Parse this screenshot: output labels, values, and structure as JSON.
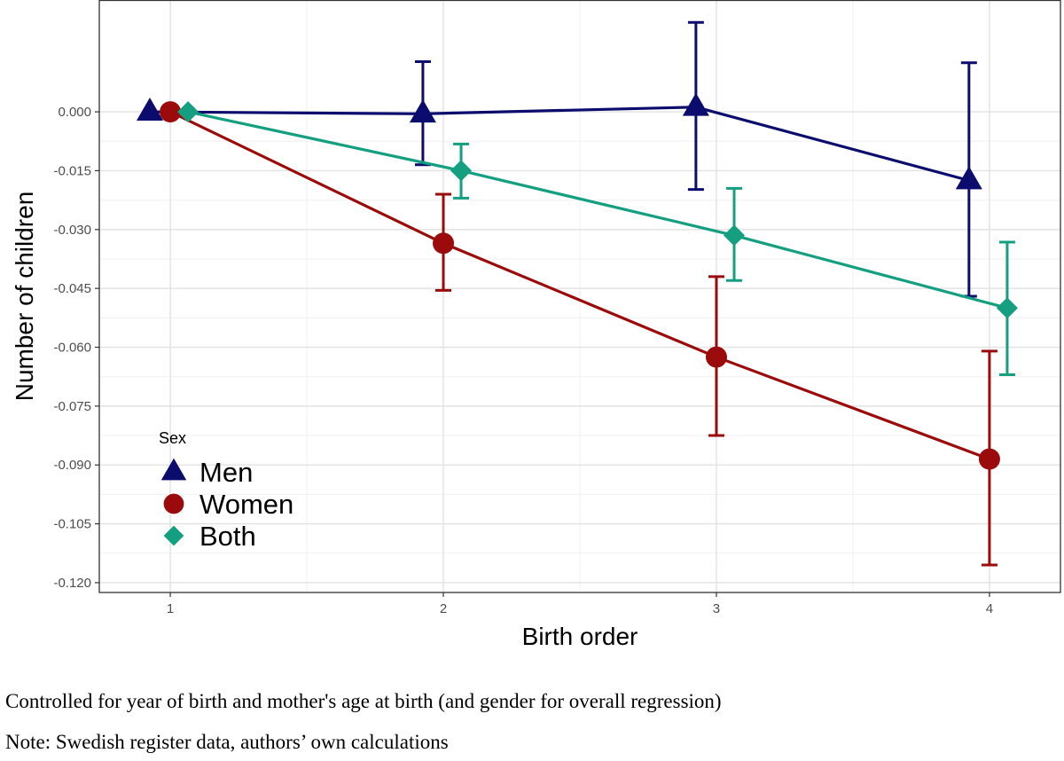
{
  "chart_data": {
    "type": "line",
    "xlabel": "Birth order",
    "ylabel": "Number of children",
    "x": [
      1,
      2,
      3,
      4
    ],
    "x_ticks": [
      "1",
      "2",
      "3",
      "4"
    ],
    "ylim": [
      -0.1225,
      0.0285
    ],
    "y_ticks": [
      "0.000",
      "-0.015",
      "-0.030",
      "-0.045",
      "-0.060",
      "-0.075",
      "-0.090",
      "-0.105",
      "-0.120"
    ],
    "y_tick_values": [
      0,
      -0.015,
      -0.03,
      -0.045,
      -0.06,
      -0.075,
      -0.09,
      -0.105,
      -0.12
    ],
    "grid": true,
    "legend": {
      "title": "Sex",
      "position": "bottom-left"
    },
    "series": [
      {
        "name": "Men",
        "color": "#0c0c6e",
        "marker": "triangle",
        "dodge": -0.075,
        "values": [
          0.0,
          -0.0005,
          0.0012,
          -0.0175
        ],
        "ci_low": [
          null,
          -0.0135,
          -0.0198,
          -0.047
        ],
        "ci_high": [
          null,
          0.0128,
          0.0228,
          0.0125
        ]
      },
      {
        "name": "Women",
        "color": "#9b0b0b",
        "marker": "circle",
        "dodge": 0.0,
        "values": [
          0.0,
          -0.0335,
          -0.0625,
          -0.0885
        ],
        "ci_low": [
          null,
          -0.0455,
          -0.0825,
          -0.1155
        ],
        "ci_high": [
          null,
          -0.021,
          -0.042,
          -0.061
        ]
      },
      {
        "name": "Both",
        "color": "#14a080",
        "marker": "diamond",
        "dodge": 0.065,
        "values": [
          0.0,
          -0.015,
          -0.0315,
          -0.05
        ],
        "ci_low": [
          null,
          -0.022,
          -0.043,
          -0.067
        ],
        "ci_high": [
          null,
          -0.0082,
          -0.0195,
          -0.0332
        ]
      }
    ]
  },
  "captions": {
    "line1": "Controlled for year of birth and mother's age at birth (and gender for overall regression)",
    "line2": "Note: Swedish register data, authors’ own calculations"
  }
}
